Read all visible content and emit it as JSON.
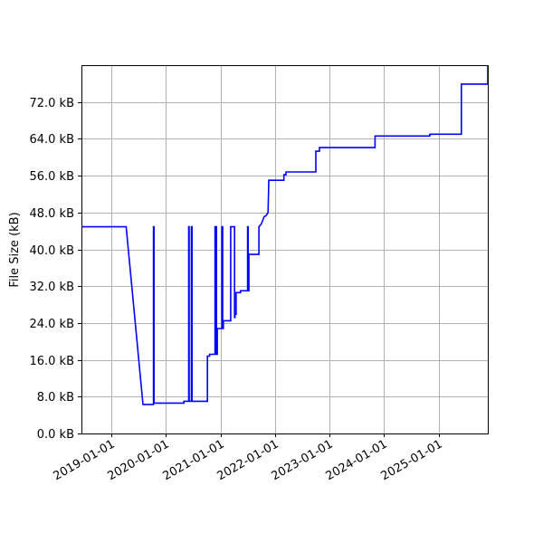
{
  "chart_data": {
    "type": "line",
    "title": "",
    "xlabel": "",
    "ylabel": "File Size (kB)",
    "x_axis_type": "date",
    "xlim": [
      "2018-06-15",
      "2025-11-25"
    ],
    "ylim": [
      0,
      80
    ],
    "grid": true,
    "legend": false,
    "line_color": "#0000ff",
    "x_ticks": [
      {
        "value": "2019-01-01",
        "label": "2019-01-01"
      },
      {
        "value": "2020-01-01",
        "label": "2020-01-01"
      },
      {
        "value": "2021-01-01",
        "label": "2021-01-01"
      },
      {
        "value": "2022-01-01",
        "label": "2022-01-01"
      },
      {
        "value": "2023-01-01",
        "label": "2023-01-01"
      },
      {
        "value": "2024-01-01",
        "label": "2024-01-01"
      },
      {
        "value": "2025-01-01",
        "label": "2025-01-01"
      }
    ],
    "y_ticks": [
      {
        "value": 0,
        "label": "0.0 kB"
      },
      {
        "value": 8,
        "label": "8.0 kB"
      },
      {
        "value": 16,
        "label": "16.0 kB"
      },
      {
        "value": 24,
        "label": "24.0 kB"
      },
      {
        "value": 32,
        "label": "32.0 kB"
      },
      {
        "value": 40,
        "label": "40.0 kB"
      },
      {
        "value": 48,
        "label": "48.0 kB"
      },
      {
        "value": 56,
        "label": "56.0 kB"
      },
      {
        "value": 64,
        "label": "64.0 kB"
      },
      {
        "value": 72,
        "label": "72.0 kB"
      }
    ],
    "series": [
      {
        "x": [
          "2018-06-15",
          "2019-04-10",
          "2019-08-01",
          "2019-10-10",
          "2019-10-10",
          "2019-10-14",
          "2019-10-14",
          "2019-10-20",
          "2020-05-01",
          "2020-05-01",
          "2020-05-20",
          "2020-06-02",
          "2020-06-02",
          "2020-06-05",
          "2020-06-05",
          "2020-06-20",
          "2020-06-20",
          "2020-06-24",
          "2020-06-24",
          "2020-10-05",
          "2020-10-05",
          "2020-10-20",
          "2020-10-20",
          "2020-11-25",
          "2020-11-25",
          "2020-12-05",
          "2020-12-05",
          "2020-12-10",
          "2020-12-10",
          "2021-01-10",
          "2021-01-10",
          "2021-01-15",
          "2021-01-15",
          "2021-01-20",
          "2021-01-20",
          "2021-03-10",
          "2021-03-10",
          "2021-04-05",
          "2021-04-05",
          "2021-04-08",
          "2021-04-08",
          "2021-04-15",
          "2021-04-15",
          "2021-05-15",
          "2021-05-15",
          "2021-07-01",
          "2021-07-01",
          "2021-07-05",
          "2021-07-05",
          "2021-07-10",
          "2021-07-10",
          "2021-09-15",
          "2021-09-15",
          "2021-10-01",
          "2021-10-20",
          "2021-11-01",
          "2021-11-15",
          "2021-11-20",
          "2021-11-25",
          "2022-03-01",
          "2022-03-01",
          "2022-03-15",
          "2022-03-15",
          "2022-10-01",
          "2022-10-01",
          "2022-10-25",
          "2022-10-25",
          "2023-11-01",
          "2023-11-01",
          "2024-11-01",
          "2024-11-01",
          "2024-11-05",
          "2024-11-05",
          "2025-06-01",
          "2025-06-01",
          "2025-11-25",
          "2025-11-25"
        ],
        "y": [
          44.9,
          44.9,
          6.3,
          6.3,
          44.9,
          44.9,
          6.6,
          6.6,
          6.6,
          7.0,
          7.0,
          7.0,
          44.9,
          44.9,
          7.0,
          7.0,
          44.9,
          44.9,
          7.0,
          7.0,
          16.8,
          16.8,
          17.2,
          17.2,
          44.9,
          44.9,
          17.2,
          17.2,
          22.8,
          22.8,
          44.9,
          44.9,
          22.8,
          22.8,
          24.5,
          24.5,
          44.9,
          44.9,
          25.2,
          25.2,
          25.9,
          25.9,
          30.6,
          30.6,
          31.0,
          31.0,
          44.9,
          44.9,
          31.0,
          31.0,
          38.9,
          38.9,
          44.9,
          45.5,
          47.1,
          47.3,
          48.0,
          55.0,
          55.0,
          55.0,
          56.2,
          56.2,
          56.8,
          56.8,
          61.3,
          61.3,
          62.1,
          62.1,
          64.6,
          64.6,
          64.9,
          64.9,
          65.0,
          65.0,
          75.9,
          75.9,
          80.0
        ]
      }
    ]
  }
}
